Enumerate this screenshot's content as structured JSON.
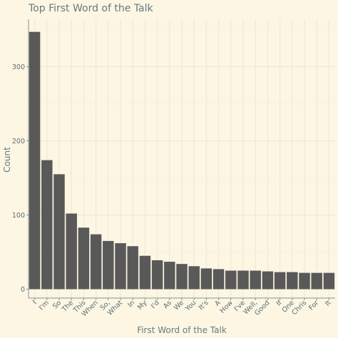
{
  "chart_data": {
    "type": "bar",
    "title": "Top First Word of the Talk",
    "xlabel": "First Word of the Talk",
    "ylabel": "Count",
    "categories": [
      "I",
      "I'm",
      "So",
      "The",
      "This",
      "When",
      "So,",
      "What",
      "In",
      "My",
      "I'd",
      "As",
      "We",
      "You",
      "It's",
      "A",
      "How",
      "I've",
      "Well,",
      "Good",
      "If",
      "One",
      "Chris",
      "For",
      "It"
    ],
    "values": [
      347,
      174,
      155,
      102,
      83,
      74,
      65,
      62,
      58,
      45,
      39,
      37,
      34,
      31,
      28,
      27,
      25,
      25,
      25,
      24,
      23,
      23,
      22,
      22,
      22
    ],
    "yticks": [
      0,
      100,
      200,
      300
    ],
    "ylim": [
      -12,
      364
    ],
    "grid": true,
    "colors": {
      "background": "#fdf6e3",
      "bar": "#595959",
      "text": "#657b83"
    }
  }
}
